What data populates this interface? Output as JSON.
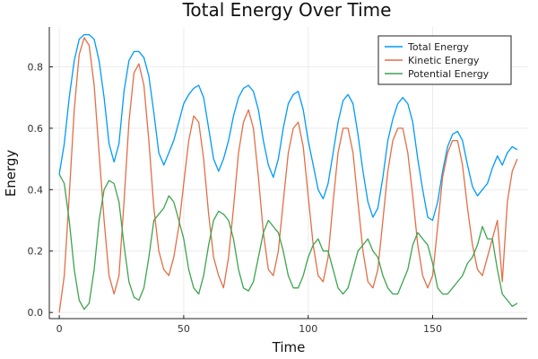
{
  "chart_data": {
    "type": "line",
    "title": "Total Energy Over Time",
    "xlabel": "Time",
    "ylabel": "Energy",
    "xlim": [
      -4,
      188
    ],
    "ylim": [
      -0.02,
      0.93
    ],
    "xticks": [
      0,
      50,
      100,
      150
    ],
    "yticks": [
      0.0,
      0.2,
      0.4,
      0.6,
      0.8
    ],
    "grid": true,
    "legend_position": "top-right",
    "series": [
      {
        "name": "Total Energy",
        "color": "#009AFA",
        "x": [
          0,
          2,
          4,
          6,
          8,
          10,
          12,
          14,
          16,
          18,
          20,
          22,
          24,
          26,
          28,
          30,
          32,
          34,
          36,
          38,
          40,
          42,
          44,
          46,
          48,
          50,
          52,
          54,
          56,
          58,
          60,
          62,
          64,
          66,
          68,
          70,
          72,
          74,
          76,
          78,
          80,
          82,
          84,
          86,
          88,
          90,
          92,
          94,
          96,
          98,
          100,
          102,
          104,
          106,
          108,
          110,
          112,
          114,
          116,
          118,
          120,
          122,
          124,
          126,
          128,
          130,
          132,
          134,
          136,
          138,
          140,
          142,
          144,
          146,
          148,
          150,
          152,
          154,
          156,
          158,
          160,
          162,
          164,
          166,
          168,
          170,
          172,
          174,
          176,
          178,
          180,
          182,
          184
        ],
        "y": [
          0.45,
          0.55,
          0.7,
          0.82,
          0.89,
          0.905,
          0.905,
          0.89,
          0.82,
          0.7,
          0.55,
          0.49,
          0.55,
          0.72,
          0.82,
          0.85,
          0.85,
          0.83,
          0.77,
          0.65,
          0.52,
          0.48,
          0.52,
          0.56,
          0.62,
          0.68,
          0.71,
          0.73,
          0.74,
          0.7,
          0.6,
          0.5,
          0.46,
          0.5,
          0.56,
          0.64,
          0.7,
          0.73,
          0.74,
          0.72,
          0.66,
          0.56,
          0.48,
          0.44,
          0.5,
          0.6,
          0.68,
          0.71,
          0.72,
          0.66,
          0.56,
          0.48,
          0.4,
          0.37,
          0.42,
          0.52,
          0.62,
          0.69,
          0.71,
          0.68,
          0.58,
          0.46,
          0.36,
          0.31,
          0.34,
          0.44,
          0.56,
          0.63,
          0.68,
          0.7,
          0.68,
          0.62,
          0.5,
          0.4,
          0.31,
          0.3,
          0.36,
          0.46,
          0.54,
          0.58,
          0.59,
          0.56,
          0.48,
          0.41,
          0.38,
          0.4,
          0.42,
          0.47,
          0.51,
          0.48,
          0.52,
          0.54,
          0.53
        ]
      },
      {
        "name": "Kinetic Energy",
        "color": "#E26F46",
        "x": [
          0,
          2,
          4,
          6,
          8,
          10,
          12,
          14,
          16,
          18,
          20,
          22,
          24,
          26,
          28,
          30,
          32,
          34,
          36,
          38,
          40,
          42,
          44,
          46,
          48,
          50,
          52,
          54,
          56,
          58,
          60,
          62,
          64,
          66,
          68,
          70,
          72,
          74,
          76,
          78,
          80,
          82,
          84,
          86,
          88,
          90,
          92,
          94,
          96,
          98,
          100,
          102,
          104,
          106,
          108,
          110,
          112,
          114,
          116,
          118,
          120,
          122,
          124,
          126,
          128,
          130,
          132,
          134,
          136,
          138,
          140,
          142,
          144,
          146,
          148,
          150,
          152,
          154,
          156,
          158,
          160,
          162,
          164,
          166,
          168,
          170,
          172,
          174,
          176,
          178,
          180,
          182,
          184
        ],
        "y": [
          0.0,
          0.12,
          0.38,
          0.66,
          0.84,
          0.895,
          0.87,
          0.74,
          0.52,
          0.3,
          0.12,
          0.06,
          0.12,
          0.36,
          0.62,
          0.78,
          0.81,
          0.74,
          0.56,
          0.34,
          0.2,
          0.14,
          0.12,
          0.18,
          0.28,
          0.42,
          0.56,
          0.64,
          0.62,
          0.5,
          0.32,
          0.18,
          0.12,
          0.08,
          0.18,
          0.34,
          0.52,
          0.62,
          0.66,
          0.6,
          0.44,
          0.26,
          0.14,
          0.12,
          0.2,
          0.36,
          0.52,
          0.6,
          0.62,
          0.54,
          0.38,
          0.22,
          0.12,
          0.1,
          0.18,
          0.36,
          0.52,
          0.6,
          0.6,
          0.52,
          0.36,
          0.2,
          0.1,
          0.08,
          0.14,
          0.3,
          0.46,
          0.56,
          0.6,
          0.6,
          0.52,
          0.38,
          0.22,
          0.12,
          0.08,
          0.12,
          0.28,
          0.44,
          0.52,
          0.56,
          0.56,
          0.48,
          0.34,
          0.22,
          0.14,
          0.12,
          0.18,
          0.24,
          0.3,
          0.1,
          0.36,
          0.46,
          0.5
        ]
      },
      {
        "name": "Potential Energy",
        "color": "#3DA44E",
        "x": [
          0,
          2,
          4,
          6,
          8,
          10,
          12,
          14,
          16,
          18,
          20,
          22,
          24,
          26,
          28,
          30,
          32,
          34,
          36,
          38,
          40,
          42,
          44,
          46,
          48,
          50,
          52,
          54,
          56,
          58,
          60,
          62,
          64,
          66,
          68,
          70,
          72,
          74,
          76,
          78,
          80,
          82,
          84,
          86,
          88,
          90,
          92,
          94,
          96,
          98,
          100,
          102,
          104,
          106,
          108,
          110,
          112,
          114,
          116,
          118,
          120,
          122,
          124,
          126,
          128,
          130,
          132,
          134,
          136,
          138,
          140,
          142,
          144,
          146,
          148,
          150,
          152,
          154,
          156,
          158,
          160,
          162,
          164,
          166,
          168,
          170,
          172,
          174,
          176,
          178,
          180,
          182,
          184
        ],
        "y": [
          0.45,
          0.42,
          0.3,
          0.14,
          0.04,
          0.01,
          0.03,
          0.14,
          0.3,
          0.4,
          0.43,
          0.42,
          0.36,
          0.22,
          0.1,
          0.05,
          0.04,
          0.08,
          0.18,
          0.3,
          0.32,
          0.34,
          0.38,
          0.36,
          0.3,
          0.24,
          0.14,
          0.08,
          0.06,
          0.12,
          0.22,
          0.3,
          0.33,
          0.32,
          0.3,
          0.24,
          0.14,
          0.08,
          0.07,
          0.1,
          0.18,
          0.26,
          0.3,
          0.28,
          0.26,
          0.2,
          0.12,
          0.08,
          0.08,
          0.12,
          0.18,
          0.22,
          0.24,
          0.2,
          0.2,
          0.14,
          0.08,
          0.06,
          0.08,
          0.14,
          0.2,
          0.22,
          0.24,
          0.2,
          0.18,
          0.12,
          0.08,
          0.06,
          0.06,
          0.1,
          0.14,
          0.22,
          0.26,
          0.24,
          0.22,
          0.16,
          0.08,
          0.06,
          0.06,
          0.08,
          0.1,
          0.12,
          0.16,
          0.18,
          0.22,
          0.28,
          0.24,
          0.24,
          0.14,
          0.06,
          0.04,
          0.02,
          0.03
        ]
      }
    ]
  }
}
